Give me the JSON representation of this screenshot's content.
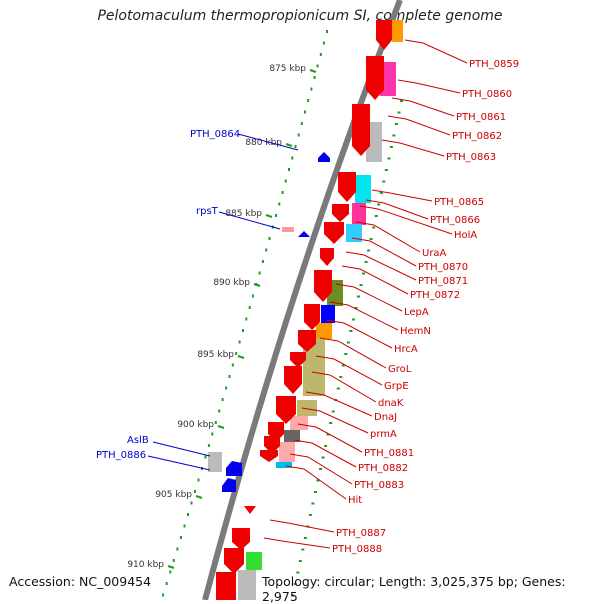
{
  "title": "Pelotomaculum thermopropionicum SI, complete genome",
  "footer": {
    "accession": "Accession: NC_009454",
    "summary": "Topology: circular; Length: 3,025,375 bp; Genes: 2,975"
  },
  "kbp_ticks": [
    "875 kbp",
    "880 kbp",
    "885 kbp",
    "890 kbp",
    "895 kbp",
    "900 kbp",
    "905 kbp",
    "910 kbp"
  ],
  "left_labels": [
    "PTH_0864",
    "rpsT",
    "AslB",
    "PTH_0886"
  ],
  "right_labels": [
    "PTH_0859",
    "PTH_0860",
    "PTH_0861",
    "PTH_0862",
    "PTH_0863",
    "PTH_0865",
    "PTH_0866",
    "HolA",
    "UraA",
    "PTH_0870",
    "PTH_0871",
    "PTH_0872",
    "LepA",
    "HemN",
    "HrcA",
    "GroL",
    "GrpE",
    "dnaK",
    "DnaJ",
    "prmA",
    "PTH_0881",
    "PTH_0882",
    "PTH_0883",
    "Hit",
    "PTH_0887",
    "PTH_0888"
  ],
  "colors": {
    "forward_gene": "#ee0000",
    "reverse_gene": "#0000ee",
    "backbone": "#7a7a7a",
    "tick": "#1e9e1e",
    "right_label": "#cc0000",
    "left_label": "#0000cc"
  }
}
